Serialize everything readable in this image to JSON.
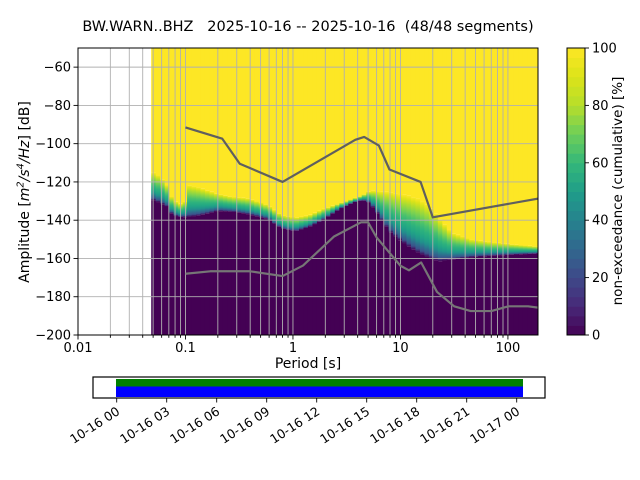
{
  "title": "BW.WARN..BHZ   2025-10-16 -- 2025-10-16  (48/48 segments)",
  "chart_data": {
    "type": "heatmap",
    "station": "BW.WARN..BHZ",
    "date_range": "2025-10-16 -- 2025-10-16",
    "segments": "48/48",
    "title": "BW.WARN..BHZ   2025-10-16 -- 2025-10-16  (48/48 segments)",
    "xlabel": "Period [s]",
    "ylabel": "Amplitude [m²/s⁴/Hz] [dB]",
    "ylabel_parts": [
      {
        "text": "Amplitude [",
        "italic": false
      },
      {
        "text": "m",
        "italic": true
      },
      {
        "text": "2",
        "italic": true,
        "sup": true
      },
      {
        "text": "/",
        "italic": true
      },
      {
        "text": "s",
        "italic": true
      },
      {
        "text": "4",
        "italic": true,
        "sup": true
      },
      {
        "text": "/",
        "italic": true
      },
      {
        "text": "Hz",
        "italic": true
      },
      {
        "text": "] [dB]",
        "italic": false
      }
    ],
    "colorbar_label": "non-exceedance (cumulative) [%]",
    "xlim": [
      0.01,
      190.5
    ],
    "ylim": [
      -200,
      -50
    ],
    "x_ticks": [
      {
        "v": 0.01,
        "label": "0.01"
      },
      {
        "v": 0.1,
        "label": "0.1"
      },
      {
        "v": 1,
        "label": "1"
      },
      {
        "v": 10,
        "label": "10"
      },
      {
        "v": 100,
        "label": "100"
      }
    ],
    "y_ticks": [
      {
        "v": -60,
        "label": "−60"
      },
      {
        "v": -80,
        "label": "−80"
      },
      {
        "v": -100,
        "label": "−100"
      },
      {
        "v": -120,
        "label": "−120"
      },
      {
        "v": -140,
        "label": "−140"
      },
      {
        "v": -160,
        "label": "−160"
      },
      {
        "v": -180,
        "label": "−180"
      },
      {
        "v": -200,
        "label": "−200"
      }
    ],
    "colorbar_ticks": [
      {
        "v": 0,
        "label": "0"
      },
      {
        "v": 20,
        "label": "20"
      },
      {
        "v": 40,
        "label": "40"
      },
      {
        "v": 60,
        "label": "60"
      },
      {
        "v": 80,
        "label": "80"
      },
      {
        "v": 100,
        "label": "100"
      }
    ],
    "grid_color": "#b0b0b0",
    "viridis": [
      [
        0.0,
        "#440154"
      ],
      [
        0.1,
        "#482878"
      ],
      [
        0.2,
        "#3e4989"
      ],
      [
        0.3,
        "#31688e"
      ],
      [
        0.4,
        "#26828e"
      ],
      [
        0.5,
        "#1f9e89"
      ],
      [
        0.6,
        "#35b779"
      ],
      [
        0.7,
        "#6cce5a"
      ],
      [
        0.8,
        "#b6de2b"
      ],
      [
        0.9,
        "#dce319"
      ],
      [
        1.0,
        "#fde725"
      ]
    ],
    "band_stops": [
      [
        0.0,
        "#fde725"
      ],
      [
        0.08,
        "#dce319"
      ],
      [
        0.18,
        "#addc30"
      ],
      [
        0.3,
        "#7ad151"
      ],
      [
        0.42,
        "#4ac16d"
      ],
      [
        0.54,
        "#2db27d"
      ],
      [
        0.66,
        "#21a585"
      ],
      [
        0.76,
        "#21918c"
      ],
      [
        0.85,
        "#2e6e8e"
      ],
      [
        0.93,
        "#3b528b"
      ],
      [
        1.0,
        "#440154"
      ]
    ],
    "field": {
      "description": "PPSD non-exceedance field: per period, dB above 'hi' is 100% (yellow), below 'lo' is 0% (dark purple), viridis gradient between",
      "fill_low": "#440154",
      "fill_high": "#fde725",
      "p_min": 0.048,
      "cols_per_decade": 24,
      "points": [
        [
          0.048,
          -114.5,
          -129.0
        ],
        [
          0.058,
          -117.0,
          -131.0
        ],
        [
          0.068,
          -122.0,
          -133.0
        ],
        [
          0.076,
          -129.5,
          -137.5
        ],
        [
          0.09,
          -131.5,
          -138.3
        ],
        [
          0.098,
          -131.0,
          -138.4
        ],
        [
          0.105,
          -121.5,
          -138.4
        ],
        [
          0.13,
          -122.6,
          -137.8
        ],
        [
          0.16,
          -124.4,
          -136.6
        ],
        [
          0.2,
          -126.2,
          -135.2
        ],
        [
          0.275,
          -127.8,
          -135.6
        ],
        [
          0.37,
          -128.4,
          -136.7
        ],
        [
          0.49,
          -130.5,
          -138.3
        ],
        [
          0.58,
          -132.0,
          -139.3
        ],
        [
          0.78,
          -137.3,
          -144.3
        ],
        [
          1.05,
          -138.6,
          -145.8
        ],
        [
          1.4,
          -137.5,
          -143.6
        ],
        [
          1.95,
          -134.0,
          -139.5
        ],
        [
          2.7,
          -131.2,
          -134.2
        ],
        [
          3.6,
          -128.8,
          -130.8
        ],
        [
          4.4,
          -127.0,
          -129.4
        ],
        [
          5.2,
          -124.6,
          -131.0
        ],
        [
          6.3,
          -124.8,
          -137.5
        ],
        [
          7.9,
          -125.2,
          -146.0
        ],
        [
          9.6,
          -126.2,
          -150.0
        ],
        [
          12.0,
          -127.2,
          -154.0
        ],
        [
          15.0,
          -129.0,
          -157.5
        ],
        [
          18.5,
          -132.5,
          -159.8
        ],
        [
          23.0,
          -139.0,
          -161.5
        ],
        [
          30.0,
          -146.5,
          -160.5
        ],
        [
          45.0,
          -150.0,
          -159.3
        ],
        [
          70.0,
          -151.5,
          -158.6
        ],
        [
          110.0,
          -152.6,
          -158.0
        ],
        [
          190.5,
          -153.8,
          -157.4
        ]
      ]
    },
    "noise_models": {
      "nhnm_color": "#5f5f5f",
      "nlnm_color": "#767676",
      "nhnm": {
        "p": [
          0.1,
          0.22,
          0.32,
          0.8,
          3.8,
          4.6,
          6.3,
          7.9,
          15.4,
          20.0,
          354.8
        ],
        "db": [
          -91.5,
          -97.4,
          -110.5,
          -120.0,
          -98.0,
          -96.5,
          -101.0,
          -113.5,
          -120.0,
          -138.5,
          -126.0
        ]
      },
      "nlnm": {
        "p": [
          0.1,
          0.17,
          0.4,
          0.8,
          1.24,
          2.4,
          4.3,
          5.0,
          6.0,
          10.0,
          12.0,
          15.6,
          21.9,
          31.6,
          45.0,
          70.0,
          101.0,
          154.0,
          328.0
        ],
        "db": [
          -168.0,
          -166.7,
          -166.7,
          -169.2,
          -163.7,
          -148.6,
          -141.1,
          -141.1,
          -149.0,
          -163.8,
          -166.2,
          -162.1,
          -177.5,
          -185.0,
          -187.5,
          -187.5,
          -185.0,
          -185.0,
          -187.5
        ]
      }
    },
    "coverage": {
      "labels": [
        "10-16 00",
        "10-16 03",
        "10-16 06",
        "10-16 09",
        "10-16 12",
        "10-16 15",
        "10-16 18",
        "10-16 21",
        "10-17 00"
      ],
      "green": "#008000",
      "blue": "#0000ff",
      "frame": "#000000"
    }
  }
}
